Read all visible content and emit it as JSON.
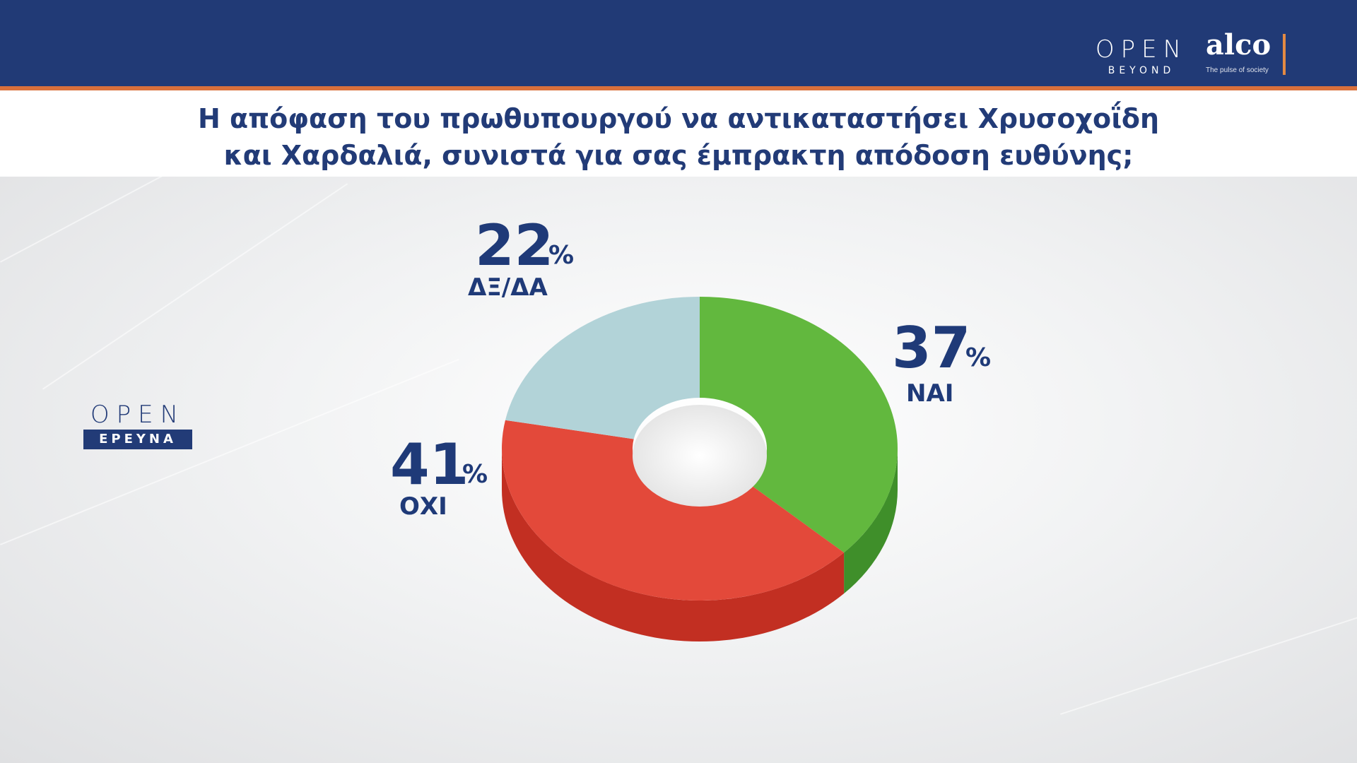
{
  "header": {
    "logo_open": "OPEN",
    "logo_open_sub": "BEYOND",
    "logo_alco": "alco",
    "logo_alco_tagline": "The pulse of society"
  },
  "colors": {
    "header_bg": "#213a76",
    "accent_stripe": "#d9703c",
    "text_navy": "#1f3a78",
    "yes": "#62b83e",
    "no": "#e3493a",
    "dk": "#b2d3d8"
  },
  "side_logo": {
    "word": "OPEN",
    "badge": "ΕΡΕΥΝΑ"
  },
  "chart_data": {
    "type": "pie",
    "title": "Η απόφαση του πρωθυπουργού να αντικαταστήσει Χρυσοχοΐδη και Χαρδαλιά, συνιστά για σας έμπρακτη απόδοση ευθύνης;",
    "title_lines": [
      "Η απόφαση του πρωθυπουργού να αντικαταστήσει Χρυσοχοΐδη",
      "και Χαρδαλιά, συνιστά για σας έμπρακτη απόδοση ευθύνης;"
    ],
    "unit": "%",
    "slices": [
      {
        "label": "ΝΑΙ",
        "value": 37,
        "value_text": "37",
        "color": "#62b83e",
        "side": "#3f8f2a"
      },
      {
        "label": "ΟΧΙ",
        "value": 41,
        "value_text": "41",
        "color": "#e3493a",
        "side": "#c22f22"
      },
      {
        "label": "ΔΞ/ΔΑ",
        "value": 22,
        "value_text": "22",
        "color": "#b2d3d8",
        "side": "#8fb4ba"
      }
    ]
  }
}
